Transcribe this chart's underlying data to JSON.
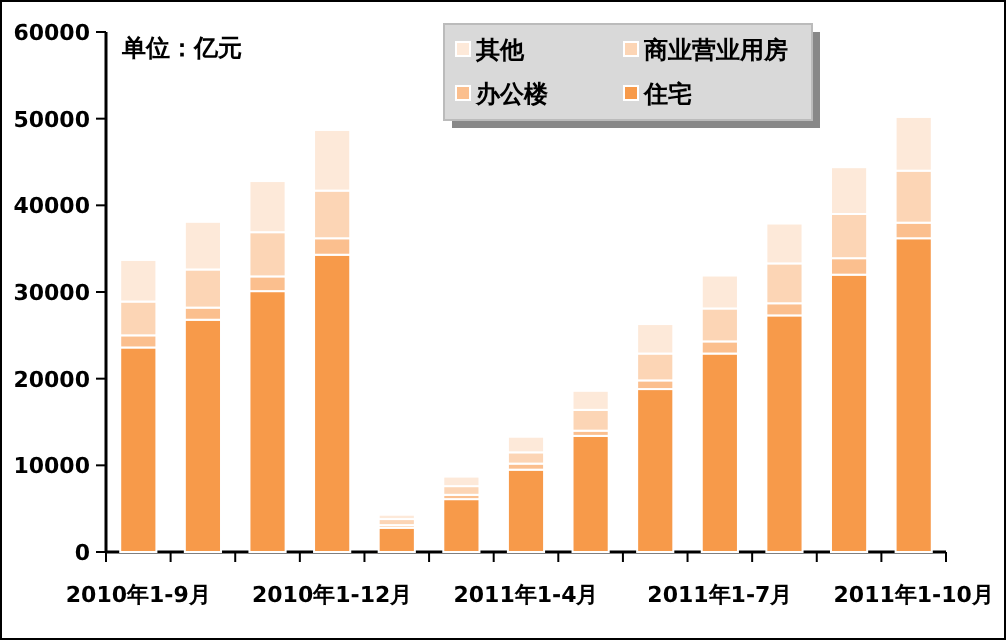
{
  "chart_data": {
    "type": "bar",
    "stacked": true,
    "categories": [
      "2010年1-9月",
      null,
      null,
      "2010年1-12月",
      null,
      null,
      "2011年1-4月",
      null,
      null,
      "2011年1-7月",
      null,
      null,
      "2011年1-10月"
    ],
    "series": [
      {
        "name": "住宅",
        "color": "#f79a4a",
        "values": [
          23600,
          26800,
          30100,
          34300,
          2800,
          6100,
          9500,
          13400,
          18800,
          22900,
          27300,
          32000,
          36200
        ]
      },
      {
        "name": "办公楼",
        "color": "#fbbf8e",
        "values": [
          1400,
          1400,
          1700,
          1900,
          300,
          500,
          700,
          600,
          1000,
          1400,
          1400,
          1900,
          1800
        ]
      },
      {
        "name": "商业营业用房",
        "color": "#fcd5b5",
        "values": [
          3900,
          4400,
          5100,
          5500,
          700,
          1000,
          1300,
          2400,
          3100,
          3800,
          4600,
          5100,
          6000
        ]
      },
      {
        "name": "其他",
        "color": "#fde9d9",
        "values": [
          4800,
          5500,
          5900,
          7000,
          500,
          1100,
          1800,
          2200,
          3400,
          3800,
          4600,
          5400,
          6200
        ]
      }
    ],
    "ylim": [
      0,
      60000
    ],
    "yticks": [
      0,
      10000,
      20000,
      30000,
      40000,
      50000,
      60000
    ],
    "legend": "top right",
    "grid": false,
    "annotations": [
      "单位：亿元"
    ]
  }
}
